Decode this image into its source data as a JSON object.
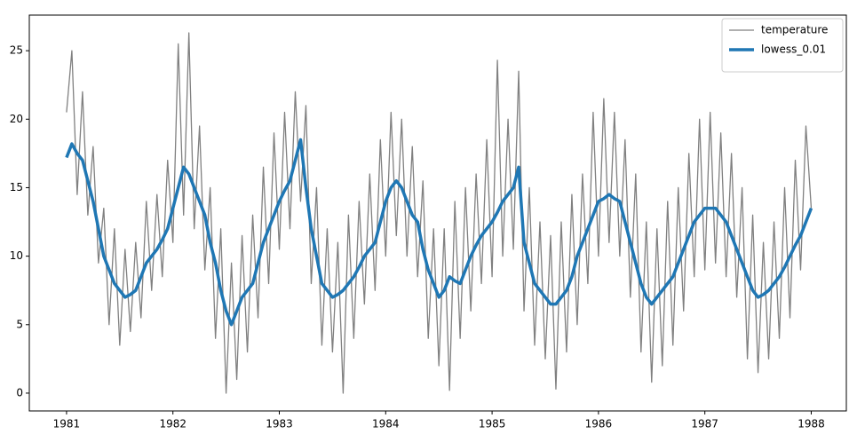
{
  "chart_data": {
    "type": "line",
    "x": [
      1981.0,
      1981.05,
      1981.1,
      1981.15,
      1981.2,
      1981.25,
      1981.3,
      1981.35,
      1981.4,
      1981.45,
      1981.5,
      1981.55,
      1981.6,
      1981.65,
      1981.7,
      1981.75,
      1981.8,
      1981.85,
      1981.9,
      1981.95,
      1982.0,
      1982.05,
      1982.1,
      1982.15,
      1982.2,
      1982.25,
      1982.3,
      1982.35,
      1982.4,
      1982.45,
      1982.5,
      1982.55,
      1982.6,
      1982.65,
      1982.7,
      1982.75,
      1982.8,
      1982.85,
      1982.9,
      1982.95,
      1983.0,
      1983.05,
      1983.1,
      1983.15,
      1983.2,
      1983.25,
      1983.3,
      1983.35,
      1983.4,
      1983.45,
      1983.5,
      1983.55,
      1983.6,
      1983.65,
      1983.7,
      1983.75,
      1983.8,
      1983.85,
      1983.9,
      1983.95,
      1984.0,
      1984.05,
      1984.1,
      1984.15,
      1984.2,
      1984.25,
      1984.3,
      1984.35,
      1984.4,
      1984.45,
      1984.5,
      1984.55,
      1984.6,
      1984.65,
      1984.7,
      1984.75,
      1984.8,
      1984.85,
      1984.9,
      1984.95,
      1985.0,
      1985.05,
      1985.1,
      1985.15,
      1985.2,
      1985.25,
      1985.3,
      1985.35,
      1985.4,
      1985.45,
      1985.5,
      1985.55,
      1985.6,
      1985.65,
      1985.7,
      1985.75,
      1985.8,
      1985.85,
      1985.9,
      1985.95,
      1986.0,
      1986.05,
      1986.1,
      1986.15,
      1986.2,
      1986.25,
      1986.3,
      1986.35,
      1986.4,
      1986.45,
      1986.5,
      1986.55,
      1986.6,
      1986.65,
      1986.7,
      1986.75,
      1986.8,
      1986.85,
      1986.9,
      1986.95,
      1987.0,
      1987.05,
      1987.1,
      1987.15,
      1987.2,
      1987.25,
      1987.3,
      1987.35,
      1987.4,
      1987.45,
      1987.5,
      1987.55,
      1987.6,
      1987.65,
      1987.7,
      1987.75,
      1987.8,
      1987.85,
      1987.9,
      1987.95,
      1988.0
    ],
    "series": [
      {
        "name": "temperature",
        "color": "#808080",
        "width": 1.3,
        "values": [
          20.5,
          25.0,
          14.5,
          22.0,
          13.0,
          18.0,
          9.5,
          13.5,
          5.0,
          12.0,
          3.5,
          10.5,
          4.5,
          11.0,
          5.5,
          14.0,
          7.5,
          14.5,
          8.5,
          17.0,
          11.0,
          25.5,
          13.0,
          26.3,
          12.0,
          19.5,
          9.0,
          15.0,
          4.0,
          12.0,
          0.0,
          9.5,
          1.0,
          11.5,
          3.0,
          13.0,
          5.5,
          16.5,
          8.0,
          19.0,
          10.5,
          20.5,
          12.0,
          22.0,
          14.0,
          21.0,
          8.0,
          15.0,
          3.5,
          12.0,
          3.0,
          11.0,
          0.0,
          13.0,
          4.0,
          14.0,
          6.5,
          16.0,
          7.5,
          18.5,
          10.0,
          20.5,
          11.5,
          20.0,
          10.0,
          18.0,
          8.5,
          15.5,
          4.0,
          12.0,
          2.0,
          12.0,
          0.2,
          14.0,
          4.0,
          15.0,
          6.0,
          16.0,
          8.0,
          18.5,
          8.5,
          24.3,
          10.0,
          20.0,
          10.5,
          23.5,
          6.0,
          15.0,
          3.5,
          12.5,
          2.5,
          11.5,
          0.3,
          12.5,
          3.0,
          14.5,
          5.0,
          16.0,
          8.0,
          20.5,
          10.0,
          21.5,
          11.0,
          20.5,
          10.0,
          18.5,
          7.0,
          16.0,
          3.0,
          12.5,
          0.8,
          12.0,
          2.0,
          14.0,
          3.5,
          15.0,
          6.0,
          17.5,
          8.5,
          20.0,
          9.0,
          20.5,
          9.5,
          19.0,
          8.5,
          17.5,
          7.0,
          15.0,
          2.5,
          13.0,
          1.5,
          11.0,
          2.5,
          12.5,
          4.0,
          15.0,
          5.5,
          17.0,
          9.0,
          19.5,
          13.5
        ]
      },
      {
        "name": "lowess_0.01",
        "color": "#1f77b4",
        "width": 3.5,
        "values": [
          17.2,
          18.2,
          17.5,
          17.0,
          15.5,
          14.0,
          12.0,
          10.0,
          9.0,
          8.0,
          7.5,
          7.0,
          7.2,
          7.5,
          8.5,
          9.5,
          10.0,
          10.5,
          11.2,
          12.0,
          13.5,
          15.0,
          16.5,
          16.0,
          15.0,
          14.0,
          13.0,
          11.0,
          9.5,
          7.5,
          6.0,
          5.0,
          6.0,
          7.0,
          7.5,
          8.0,
          9.5,
          11.0,
          12.0,
          13.0,
          14.0,
          14.8,
          15.5,
          17.0,
          18.5,
          15.0,
          12.0,
          10.0,
          8.0,
          7.5,
          7.0,
          7.2,
          7.5,
          8.0,
          8.5,
          9.2,
          10.0,
          10.5,
          11.0,
          12.5,
          14.0,
          15.0,
          15.5,
          15.0,
          14.0,
          13.0,
          12.5,
          10.5,
          9.0,
          8.0,
          7.0,
          7.5,
          8.5,
          8.2,
          8.0,
          9.0,
          10.0,
          10.8,
          11.5,
          12.0,
          12.5,
          13.2,
          14.0,
          14.5,
          15.0,
          16.5,
          11.0,
          9.5,
          8.0,
          7.5,
          7.0,
          6.5,
          6.5,
          7.0,
          7.5,
          8.5,
          10.0,
          11.0,
          12.0,
          13.0,
          14.0,
          14.2,
          14.5,
          14.2,
          14.0,
          12.5,
          11.0,
          9.5,
          8.0,
          7.0,
          6.5,
          7.0,
          7.5,
          8.0,
          8.5,
          9.5,
          10.5,
          11.5,
          12.5,
          13.0,
          13.5,
          13.5,
          13.5,
          13.0,
          12.5,
          11.5,
          10.5,
          9.5,
          8.5,
          7.5,
          7.0,
          7.2,
          7.5,
          8.0,
          8.5,
          9.2,
          10.0,
          10.8,
          11.5,
          12.5,
          13.5
        ]
      }
    ],
    "xlim": [
      1980.65,
      1988.33
    ],
    "ylim": [
      -1.3,
      27.6
    ],
    "xticks": [
      1981,
      1982,
      1983,
      1984,
      1985,
      1986,
      1987,
      1988
    ],
    "yticks": [
      0,
      5,
      10,
      15,
      20,
      25
    ],
    "grid": false,
    "legend": "upper right"
  }
}
